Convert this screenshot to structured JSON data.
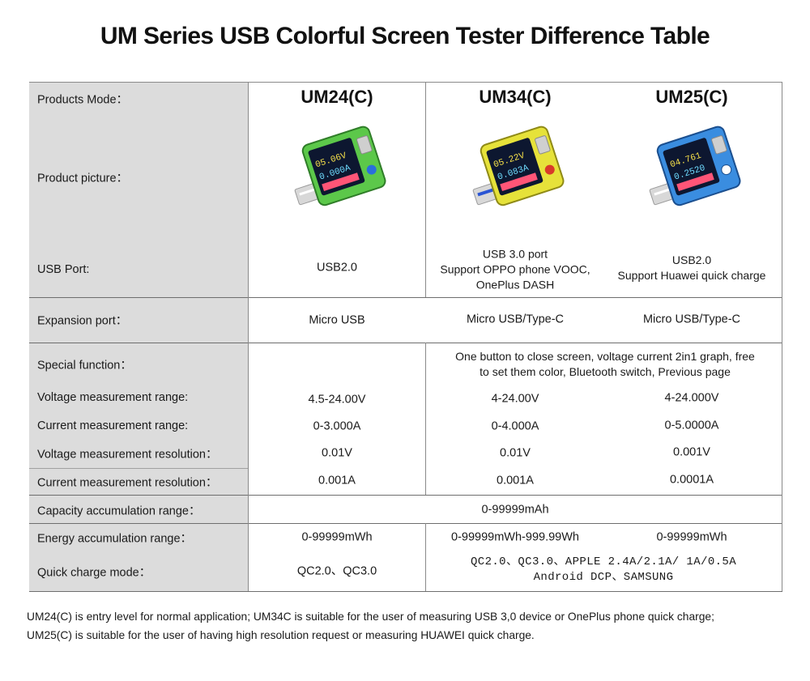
{
  "title": "UM Series USB Colorful Screen Tester Difference Table",
  "labels": {
    "mode": "Products Mode：",
    "picture": "Product picture：",
    "usb_port": "USB Port:",
    "expansion": "Expansion port：",
    "special": "Special function：",
    "voltage_range": "Voltage measurement range:",
    "current_range": "Current measurement range:",
    "voltage_res": "Voltage measurement resolution：",
    "current_res": "Current measurement resolution：",
    "capacity": "Capacity accumulation range：",
    "energy": "Energy accumulation range：",
    "quick": "Quick charge mode："
  },
  "products": [
    {
      "mode": "UM24(C)",
      "body_color": "#5cc84a",
      "usb_port": [
        "USB2.0"
      ],
      "expansion": "Micro USB",
      "voltage_range": "4.5-24.00V",
      "current_range": "0-3.000A",
      "voltage_res": "0.01V",
      "current_res": "0.001A",
      "energy": "0-99999mWh",
      "quick": "QC2.0、QC3.0"
    },
    {
      "mode": "UM34(C)",
      "body_color": "#e6e23a",
      "usb_port": [
        "USB 3.0 port",
        "Support OPPO phone VOOC,",
        "OnePlus DASH"
      ],
      "expansion": "Micro USB/Type-C",
      "voltage_range": "4-24.00V",
      "current_range": "0-4.000A",
      "voltage_res": "0.01V",
      "current_res": "0.001A",
      "energy": "0-99999mWh-999.99Wh"
    },
    {
      "mode": "UM25(C)",
      "body_color": "#3a8de0",
      "usb_port": [
        "USB2.0",
        "Support Huawei quick charge"
      ],
      "expansion": "Micro USB/Type-C",
      "voltage_range": "4-24.000V",
      "current_range": "0-5.0000A",
      "voltage_res": "0.001V",
      "current_res": "0.0001A",
      "energy": "0-99999mWh"
    }
  ],
  "special_shared": [
    "One button to close screen, voltage current 2in1 graph, free",
    "to set them color, Bluetooth switch, Previous page"
  ],
  "capacity_shared": "0-99999mAh",
  "quick_shared": [
    "QC2.0、QC3.0、APPLE 2.4A/2.1A/ 1A/0.5A",
    "Android DCP、SAMSUNG"
  ],
  "screen_values": [
    [
      "05.06V",
      "0.000A"
    ],
    [
      "05.22V",
      "0.083A"
    ],
    [
      "04.761",
      "0.2520"
    ]
  ],
  "footer": [
    "UM24(C) is  entry level for normal application; UM34C is suitable for the user of measuring USB 3,0 device or OnePlus phone quick charge;",
    "UM25(C) is suitable for the user of having high resolution request or measuring HUAWEI quick charge."
  ]
}
